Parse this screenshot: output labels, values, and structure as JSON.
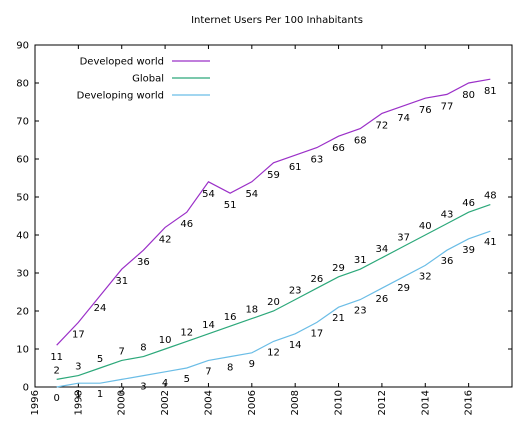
{
  "chart_data": {
    "type": "line",
    "title": "Internet Users Per 100 Inhabitants",
    "xlabel": "",
    "ylabel": "",
    "xlim": [
      1996,
      2018
    ],
    "ylim": [
      0,
      90
    ],
    "xticks": [
      1996,
      1998,
      2000,
      2002,
      2004,
      2006,
      2008,
      2010,
      2012,
      2014,
      2016
    ],
    "yticks": [
      0,
      10,
      20,
      30,
      40,
      50,
      60,
      70,
      80,
      90
    ],
    "grid": false,
    "legend_position": "top-left",
    "x": [
      1997,
      1998,
      1999,
      2000,
      2001,
      2002,
      2003,
      2004,
      2005,
      2006,
      2007,
      2008,
      2009,
      2010,
      2011,
      2012,
      2013,
      2014,
      2015,
      2016,
      2017
    ],
    "series": [
      {
        "name": "Developed world",
        "color": "#9b30c8",
        "values": [
          11,
          17,
          24,
          31,
          36,
          42,
          46,
          54,
          51,
          54,
          59,
          61,
          63,
          66,
          68,
          72,
          74,
          76,
          77,
          80,
          81
        ],
        "labels": [
          "11",
          "17",
          "24",
          "31",
          "36",
          "42",
          "46",
          "54",
          "51",
          "54",
          "59",
          "61",
          "63",
          "66",
          "68",
          "72",
          "74",
          "76",
          "77",
          "80",
          "81"
        ]
      },
      {
        "name": "Global",
        "color": "#2ca87a",
        "values": [
          2,
          3,
          5,
          7,
          8,
          10,
          12,
          14,
          16,
          18,
          20,
          23,
          26,
          29,
          31,
          34,
          37,
          40,
          43,
          46,
          48
        ],
        "labels": [
          "2",
          "3",
          "5",
          "7",
          "8",
          "10",
          "12",
          "14",
          "16",
          "18",
          "20",
          "23",
          "26",
          "29",
          "31",
          "34",
          "37",
          "40",
          "43",
          "46",
          "48"
        ]
      },
      {
        "name": "Developing world",
        "color": "#6bbde6",
        "values": [
          0,
          1,
          1,
          2,
          3,
          4,
          5,
          7,
          8,
          9,
          12,
          14,
          17,
          21,
          23,
          26,
          29,
          32,
          36,
          39,
          41
        ],
        "labels": [
          "0",
          "1",
          "1",
          "2",
          "3",
          "4",
          "5",
          "7",
          "8",
          "9",
          "12",
          "14",
          "17",
          "21",
          "23",
          "26",
          "29",
          "32",
          "36",
          "39",
          "41"
        ]
      }
    ]
  }
}
